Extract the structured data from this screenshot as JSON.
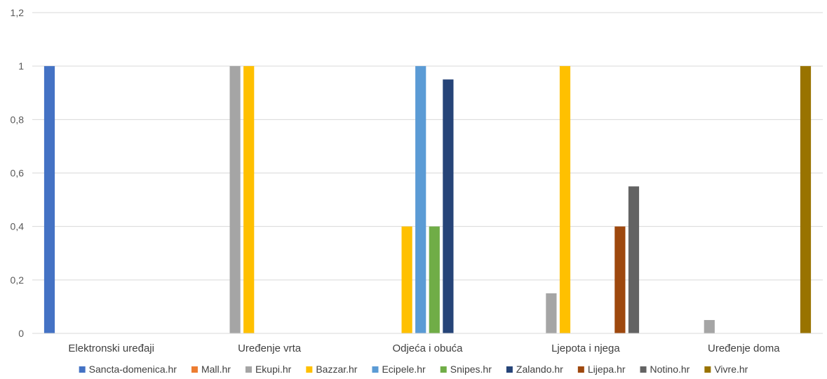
{
  "chart_data": {
    "type": "bar",
    "categories": [
      "Elektronski uređaji",
      "Uređenje vrta",
      "Odjeća i obuća",
      "Ljepota i njega",
      "Uređenje doma"
    ],
    "series": [
      {
        "name": "Sancta-domenica.hr",
        "color": "#4472C4",
        "values": [
          1,
          0,
          0,
          0,
          0
        ]
      },
      {
        "name": "Mall.hr",
        "color": "#ED7D31",
        "values": [
          0,
          0,
          0,
          0,
          0
        ]
      },
      {
        "name": "Ekupi.hr",
        "color": "#A5A5A5",
        "values": [
          0,
          1,
          0,
          0.15,
          0.05
        ]
      },
      {
        "name": "Bazzar.hr",
        "color": "#FFC000",
        "values": [
          0,
          1,
          0.4,
          1,
          0
        ]
      },
      {
        "name": "Ecipele.hr",
        "color": "#5B9BD5",
        "values": [
          0,
          0,
          1,
          0,
          0
        ]
      },
      {
        "name": "Snipes.hr",
        "color": "#70AD47",
        "values": [
          0,
          0,
          0.4,
          0,
          0
        ]
      },
      {
        "name": "Zalando.hr",
        "color": "#264478",
        "values": [
          0,
          0,
          0.95,
          0,
          0
        ]
      },
      {
        "name": "Lijepa.hr",
        "color": "#9E480E",
        "values": [
          0,
          0,
          0,
          0.4,
          0
        ]
      },
      {
        "name": "Notino.hr",
        "color": "#636363",
        "values": [
          0,
          0,
          0,
          0.55,
          0
        ]
      },
      {
        "name": "Vivre.hr",
        "color": "#997300",
        "values": [
          0,
          0,
          0,
          0,
          1
        ]
      }
    ],
    "yticks": [
      "0",
      "0,2",
      "0,4",
      "0,6",
      "0,8",
      "1",
      "1,2"
    ],
    "ylim": [
      0,
      1.2
    ],
    "grid": true,
    "legend_position": "bottom",
    "title": "",
    "xlabel": "",
    "ylabel": ""
  }
}
